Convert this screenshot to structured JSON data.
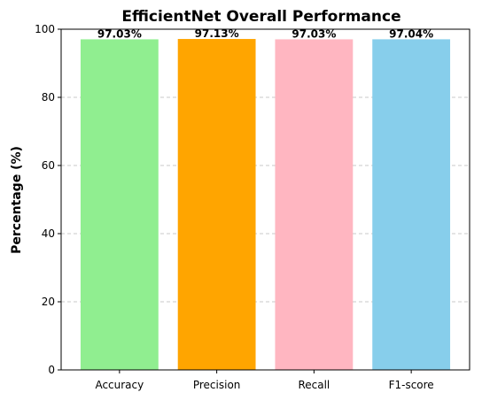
{
  "chart_data": {
    "type": "bar",
    "title": "EfficientNet Overall Performance",
    "xlabel": "",
    "ylabel": "Percentage (%)",
    "categories": [
      "Accuracy",
      "Precision",
      "Recall",
      "F1-score"
    ],
    "values": [
      97.03,
      97.13,
      97.03,
      97.04
    ],
    "value_labels": [
      "97.03%",
      "97.13%",
      "97.03%",
      "97.04%"
    ],
    "colors": [
      "#90ee90",
      "#ffa500",
      "#ffb6c1",
      "#87ceeb"
    ],
    "ylim": [
      0,
      100
    ],
    "yticks": [
      0,
      20,
      40,
      60,
      80,
      100
    ],
    "grid": "y-dashed"
  }
}
